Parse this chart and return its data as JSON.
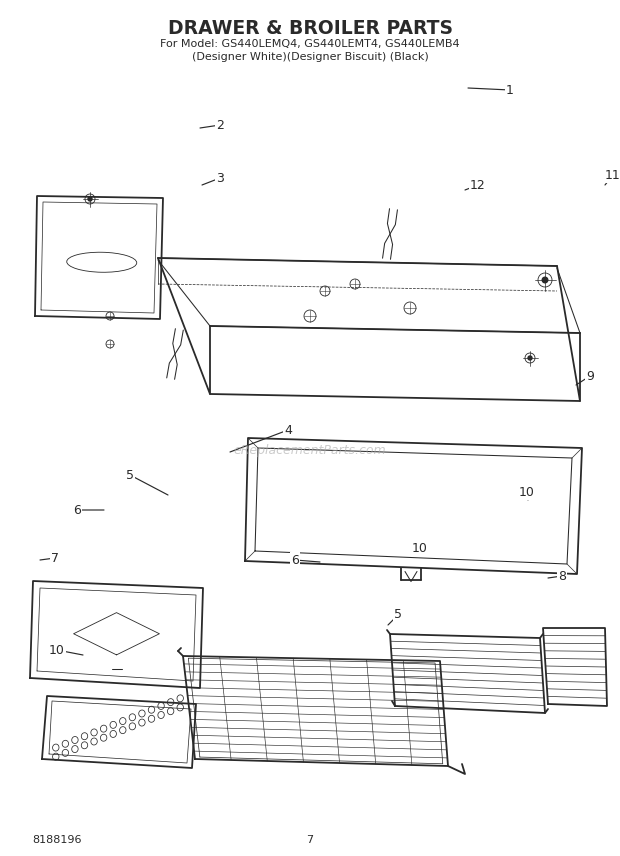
{
  "title": "DRAWER & BROILER PARTS",
  "subtitle1": "For Model: GS440LEMQ4, GS440LEMT4, GS440LEMB4",
  "subtitle2": "(Designer White)(Designer Biscuit) (Black)",
  "doc_number": "8188196",
  "page_number": "7",
  "bg_color": "#ffffff",
  "line_color": "#2a2a2a",
  "watermark": "eReplacementParts.com",
  "fig_width": 6.2,
  "fig_height": 8.56,
  "dpi": 100
}
